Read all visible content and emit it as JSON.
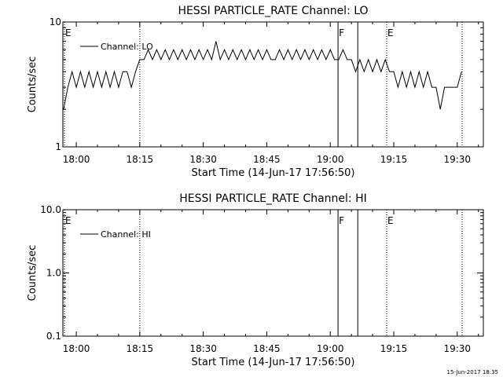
{
  "footer_date": "15-Jun-2017 18:35",
  "chart_data": [
    {
      "type": "line",
      "title": "HESSI PARTICLE_RATE Channel: LO",
      "xlabel": "Start Time (14-Jun-17 17:56:50)",
      "ylabel": "Counts/sec",
      "y_scale": "log",
      "ylim": [
        1,
        10
      ],
      "y_tick_labels": [
        "1",
        "10"
      ],
      "xlim": [
        "17:56:50",
        "19:36:10"
      ],
      "x_tick_labels": [
        "18:00",
        "18:15",
        "18:30",
        "18:45",
        "19:00",
        "19:15",
        "19:30"
      ],
      "legend": {
        "placement": "top-left",
        "label": "Channel: LO"
      },
      "markers": [
        {
          "label": "E",
          "time": "17:56:50",
          "style": "dotted"
        },
        {
          "label": "",
          "time": "18:15:00",
          "style": "dotted"
        },
        {
          "label": "F",
          "time": "19:01:50",
          "style": "solid"
        },
        {
          "label": "",
          "time": "19:06:30",
          "style": "solid"
        },
        {
          "label": "E",
          "time": "19:13:20",
          "style": "dotted"
        },
        {
          "label": "",
          "time": "19:31:10",
          "style": "dotted"
        }
      ],
      "series": [
        {
          "name": "Channel: LO",
          "x": [
            "17:57",
            "17:58",
            "17:59",
            "18:00",
            "18:01",
            "18:02",
            "18:03",
            "18:04",
            "18:05",
            "18:06",
            "18:07",
            "18:08",
            "18:09",
            "18:10",
            "18:11",
            "18:12",
            "18:13",
            "18:14",
            "18:15",
            "18:16",
            "18:17",
            "18:18",
            "18:19",
            "18:20",
            "18:21",
            "18:22",
            "18:23",
            "18:24",
            "18:25",
            "18:26",
            "18:27",
            "18:28",
            "18:29",
            "18:30",
            "18:31",
            "18:32",
            "18:33",
            "18:34",
            "18:35",
            "18:36",
            "18:37",
            "18:38",
            "18:39",
            "18:40",
            "18:41",
            "18:42",
            "18:43",
            "18:44",
            "18:45",
            "18:46",
            "18:47",
            "18:48",
            "18:49",
            "18:50",
            "18:51",
            "18:52",
            "18:53",
            "18:54",
            "18:55",
            "18:56",
            "18:57",
            "18:58",
            "18:59",
            "19:00",
            "19:01",
            "19:02",
            "19:03",
            "19:04",
            "19:05",
            "19:06",
            "19:07",
            "19:08",
            "19:09",
            "19:10",
            "19:11",
            "19:12",
            "19:13",
            "19:14",
            "19:15",
            "19:16",
            "19:17",
            "19:18",
            "19:19",
            "19:20",
            "19:21",
            "19:22",
            "19:23",
            "19:24",
            "19:25",
            "19:26",
            "19:27",
            "19:28",
            "19:29",
            "19:30",
            "19:31"
          ],
          "y": [
            2,
            3,
            4,
            3,
            4,
            3,
            4,
            3,
            4,
            3,
            4,
            3,
            4,
            3,
            4,
            4,
            3,
            4,
            5,
            5,
            6,
            5,
            6,
            5,
            6,
            5,
            6,
            5,
            6,
            5,
            6,
            5,
            6,
            5,
            6,
            5,
            7,
            5,
            6,
            5,
            6,
            5,
            6,
            5,
            6,
            5,
            6,
            5,
            6,
            5,
            5,
            6,
            5,
            6,
            5,
            6,
            5,
            6,
            5,
            6,
            5,
            6,
            5,
            6,
            5,
            5,
            6,
            5,
            5,
            4,
            5,
            4,
            5,
            4,
            5,
            4,
            5,
            4,
            4,
            3,
            4,
            3,
            4,
            3,
            4,
            3,
            4,
            3,
            3,
            2,
            3,
            3,
            3,
            3,
            4
          ]
        }
      ]
    },
    {
      "type": "line",
      "title": "HESSI PARTICLE_RATE Channel: HI",
      "xlabel": "Start Time (14-Jun-17 17:56:50)",
      "ylabel": "Counts/sec",
      "y_scale": "log",
      "ylim": [
        0.1,
        10
      ],
      "y_tick_labels": [
        "0.1",
        "1.0",
        "10.0"
      ],
      "xlim": [
        "17:56:50",
        "19:36:10"
      ],
      "x_tick_labels": [
        "18:00",
        "18:15",
        "18:30",
        "18:45",
        "19:00",
        "19:15",
        "19:30"
      ],
      "legend": {
        "placement": "top-left",
        "label": "Channel: HI"
      },
      "markers": [
        {
          "label": "E",
          "time": "17:56:50",
          "style": "dotted"
        },
        {
          "label": "",
          "time": "18:15:00",
          "style": "dotted"
        },
        {
          "label": "F",
          "time": "19:01:50",
          "style": "solid"
        },
        {
          "label": "",
          "time": "19:06:30",
          "style": "solid"
        },
        {
          "label": "E",
          "time": "19:13:20",
          "style": "dotted"
        },
        {
          "label": "",
          "time": "19:31:10",
          "style": "dotted"
        }
      ],
      "series": [
        {
          "name": "Channel: HI",
          "x": [],
          "y": []
        }
      ]
    }
  ]
}
